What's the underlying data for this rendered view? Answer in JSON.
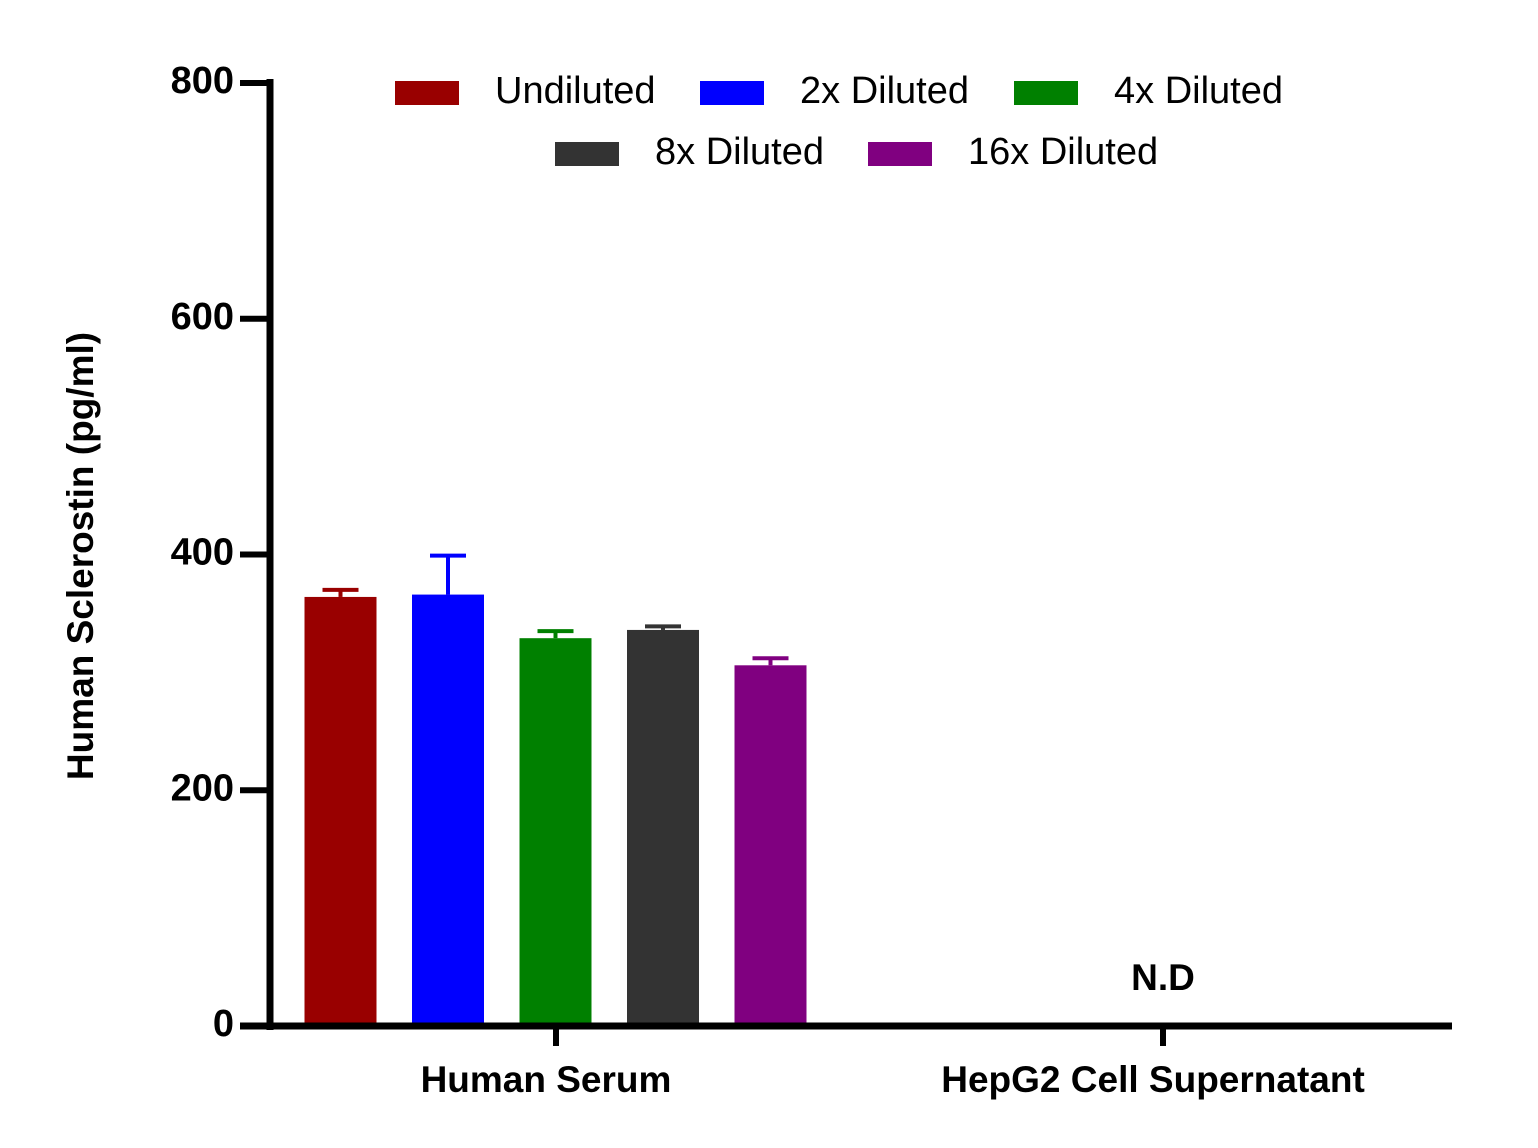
{
  "chart_data": {
    "type": "bar",
    "ylabel": "Human Sclerostin (pg/ml)",
    "xlabel": "",
    "ylim": [
      0,
      800
    ],
    "yticks": [
      0,
      200,
      400,
      600,
      800
    ],
    "categories": [
      "Human Serum",
      "HepG2 Cell Supernatant"
    ],
    "series": [
      {
        "name": "Undiluted",
        "color": "#990000",
        "values": [
          364,
          null
        ],
        "errors": [
          6,
          null
        ]
      },
      {
        "name": "2x Diluted",
        "color": "#0000ff",
        "values": [
          366,
          null
        ],
        "errors": [
          33,
          null
        ]
      },
      {
        "name": "4x Diluted",
        "color": "#008000",
        "values": [
          329,
          null
        ],
        "errors": [
          6,
          null
        ]
      },
      {
        "name": "8x Diluted",
        "color": "#333333",
        "values": [
          336,
          null
        ],
        "errors": [
          3,
          null
        ]
      },
      {
        "name": "16x Diluted",
        "color": "#800080",
        "values": [
          306,
          null
        ],
        "errors": [
          6,
          null
        ]
      }
    ],
    "annotations": [
      {
        "category": "HepG2 Cell Supernatant",
        "text": "N.D"
      }
    ],
    "legend": {
      "placement": "top",
      "columns_per_row": [
        3,
        2
      ]
    },
    "grid": false
  }
}
